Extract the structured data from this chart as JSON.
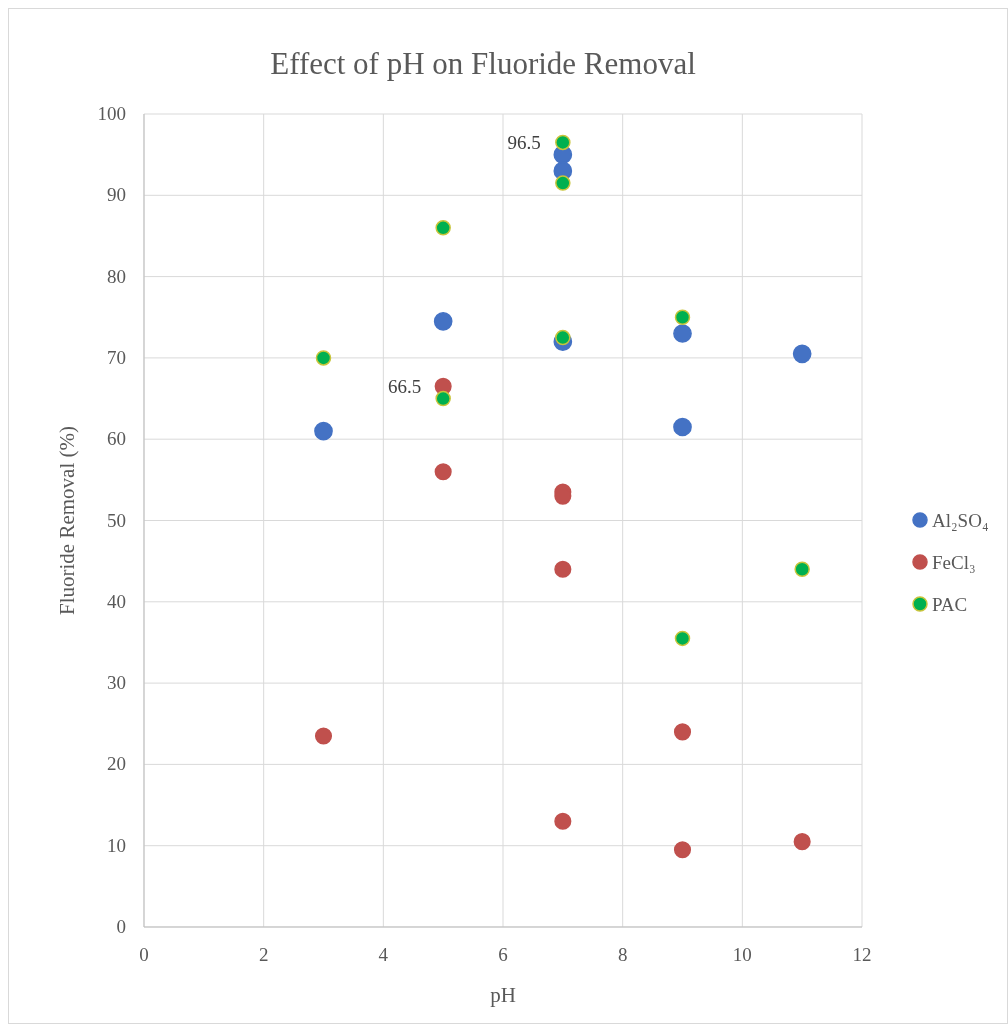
{
  "chart_data": {
    "type": "scatter",
    "title": "Effect of pH on Fluoride Removal",
    "xlabel": "pH",
    "ylabel": "Fluoride Removal (%)",
    "xlim": [
      0,
      12
    ],
    "xticks": [
      0,
      2,
      4,
      6,
      8,
      10,
      12
    ],
    "ylim": [
      0,
      100
    ],
    "yticks": [
      0,
      10,
      20,
      30,
      40,
      50,
      60,
      70,
      80,
      90,
      100
    ],
    "grid": true,
    "legend": "right",
    "marker": "circle",
    "series": [
      {
        "name": "Al₂SO₄",
        "color": "#4472c4",
        "x": [
          3,
          5,
          7,
          7,
          7,
          9,
          9,
          11
        ],
        "values": [
          61,
          74.5,
          95,
          93,
          72,
          73,
          61.5,
          70.5
        ]
      },
      {
        "name": "FeCl₃",
        "color": "#c0504d",
        "x": [
          3,
          5,
          5,
          7,
          7,
          7,
          7,
          9,
          9,
          11
        ],
        "values": [
          23.5,
          66.5,
          56,
          53.5,
          53,
          44,
          13,
          24,
          9.5,
          10.5
        ]
      },
      {
        "name": "PAC",
        "color": "#00b050",
        "x": [
          3,
          5,
          5,
          7,
          7,
          7,
          9,
          9,
          11
        ],
        "values": [
          70,
          86,
          65,
          96.5,
          91.5,
          72.5,
          75,
          35.5,
          44
        ]
      }
    ],
    "annotations": [
      {
        "text": "96.5",
        "x": 7,
        "y": 96.5
      },
      {
        "text": "66.5",
        "x": 5,
        "y": 66.5
      }
    ]
  }
}
